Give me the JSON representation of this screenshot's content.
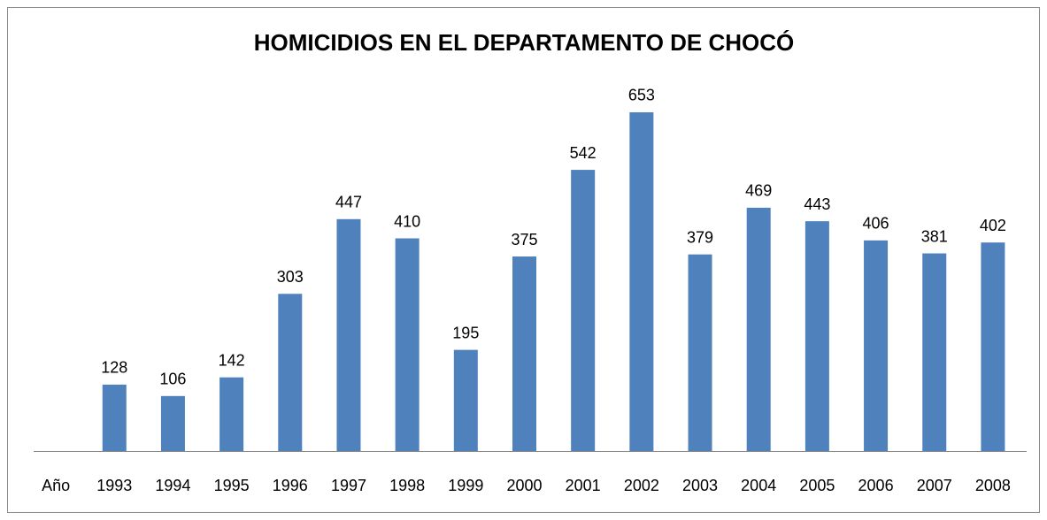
{
  "chart_data": {
    "type": "bar",
    "title": "HOMICIDIOS EN EL DEPARTAMENTO  DE CHOCÓ",
    "categories": [
      "Año",
      "1993",
      "1994",
      "1995",
      "1996",
      "1997",
      "1998",
      "1999",
      "2000",
      "2001",
      "2002",
      "2003",
      "2004",
      "2005",
      "2006",
      "2007",
      "2008"
    ],
    "values": [
      null,
      128,
      106,
      142,
      303,
      447,
      410,
      195,
      375,
      542,
      653,
      379,
      469,
      443,
      406,
      381,
      402
    ],
    "color": "#4f81bd",
    "ylim": [
      0,
      700
    ]
  }
}
